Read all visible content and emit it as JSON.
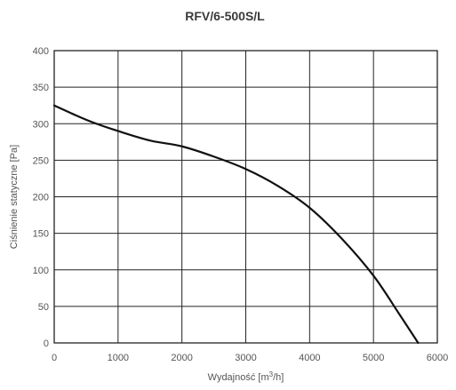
{
  "chart_data": {
    "type": "line",
    "title": "RFV/6-500S/L",
    "xlabel_pre": "Wydajność [m",
    "xlabel_sup": "3",
    "xlabel_post": "/h]",
    "ylabel": "Ciśnienie statyczne [Pa]",
    "xlim": [
      0,
      6000
    ],
    "ylim": [
      0,
      400
    ],
    "xticks": [
      0,
      1000,
      2000,
      3000,
      4000,
      5000,
      6000
    ],
    "yticks": [
      0,
      50,
      100,
      150,
      200,
      250,
      300,
      350,
      400
    ],
    "grid": true,
    "series": [
      {
        "x": [
          0,
          300,
          600,
          1000,
          1500,
          2000,
          2500,
          3000,
          3500,
          4000,
          4500,
          5000,
          5400,
          5700
        ],
        "y": [
          325,
          313,
          302,
          290,
          277,
          269,
          255,
          238,
          215,
          185,
          143,
          92,
          40,
          0
        ]
      }
    ]
  }
}
